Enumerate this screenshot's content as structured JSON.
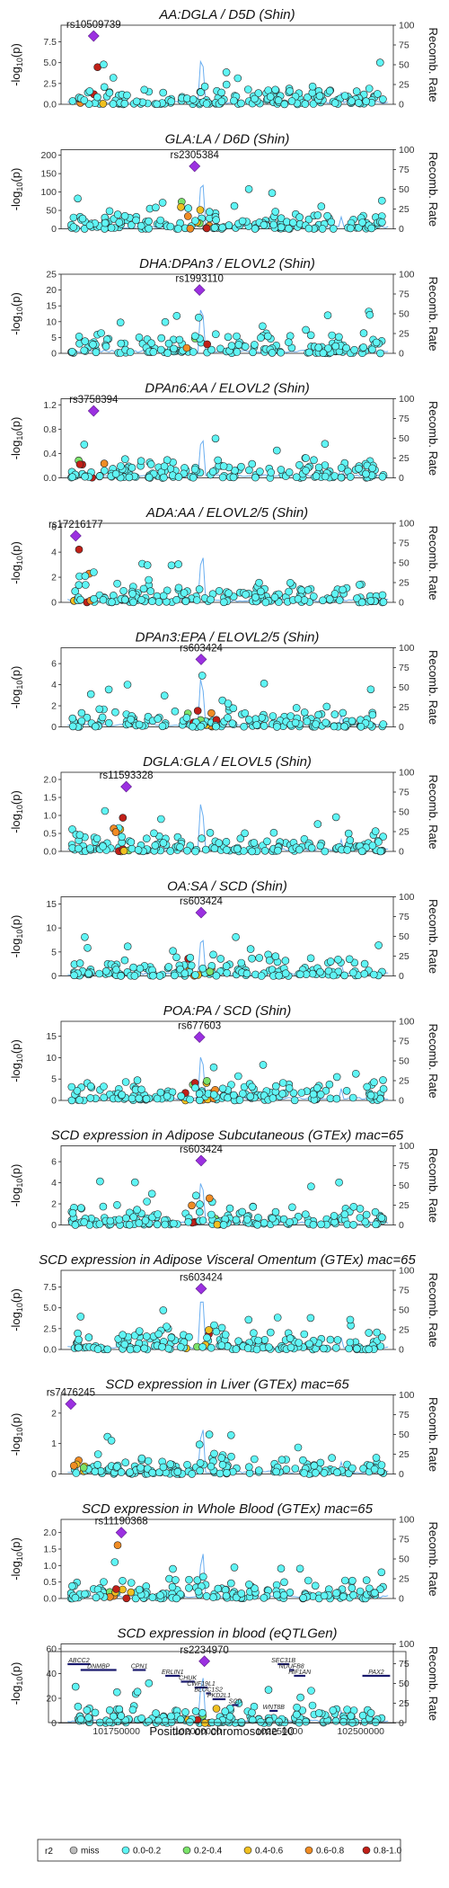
{
  "chart_data": {
    "type": "scatter",
    "xlabel": "Position on chromosome 10",
    "x_ticks": [
      "101750000",
      "102000000",
      "102250000",
      "102500000"
    ],
    "xlim": [
      101580000,
      102600000
    ],
    "right_axis_label": "Recomb. Rate",
    "right_ticks": [
      "0",
      "25",
      "50",
      "75",
      "100"
    ],
    "ylabel": "-log10(p)",
    "legend": {
      "title": "r2",
      "entries": [
        {
          "label": "miss",
          "color": "#bdbdbd"
        },
        {
          "label": "0.0-0.2",
          "color": "#5ff5f5"
        },
        {
          "label": "0.2-0.4",
          "color": "#7be36a"
        },
        {
          "label": "0.4-0.6",
          "color": "#f0c020"
        },
        {
          "label": "0.6-0.8",
          "color": "#f08c24"
        },
        {
          "label": "0.8-1.0",
          "color": "#c02018"
        }
      ]
    },
    "panels": [
      {
        "title": "AA:DGLA / D5D (Shin)",
        "lead_snp": "rs10509739",
        "lead_pos": 101680000,
        "lead_y": 8.2,
        "ylim": [
          0,
          9.5
        ],
        "y_ticks": [
          "0.0",
          "2.5",
          "5.0",
          "7.5"
        ],
        "y_tick_values": [
          0,
          2.5,
          5,
          7.5
        ]
      },
      {
        "title": "GLA:LA / D6D (Shin)",
        "lead_snp": "rs2305384",
        "lead_pos": 101990000,
        "lead_y": 170,
        "ylim": [
          0,
          215
        ],
        "y_ticks": [
          "0",
          "50",
          "100",
          "150",
          "200"
        ],
        "y_tick_values": [
          0,
          50,
          100,
          150,
          200
        ]
      },
      {
        "title": "DHA:DPAn3 / ELOVL2 (Shin)",
        "lead_snp": "rs1993110",
        "lead_pos": 102005000,
        "lead_y": 20,
        "ylim": [
          0,
          25
        ],
        "y_ticks": [
          "0",
          "5",
          "10",
          "15",
          "20",
          "25"
        ],
        "y_tick_values": [
          0,
          5,
          10,
          15,
          20,
          25
        ]
      },
      {
        "title": "DPAn6:AA / ELOVL2 (Shin)",
        "lead_snp": "rs3758394",
        "lead_pos": 101680000,
        "lead_y": 1.1,
        "ylim": [
          0,
          1.3
        ],
        "y_ticks": [
          "0.0",
          "0.4",
          "0.8",
          "1.2"
        ],
        "y_tick_values": [
          0,
          0.4,
          0.8,
          1.2
        ]
      },
      {
        "title": "ADA:AA / ELOVL2/5 (Shin)",
        "lead_snp": "rs17216177",
        "lead_pos": 101625000,
        "lead_y": 5.3,
        "ylim": [
          0,
          6.3
        ],
        "y_ticks": [
          "0",
          "2",
          "4",
          "6"
        ],
        "y_tick_values": [
          0,
          2,
          4,
          6
        ]
      },
      {
        "title": "DPAn3:EPA / ELOVL2/5 (Shin)",
        "lead_snp": "rs603424",
        "lead_pos": 102010000,
        "lead_y": 6.4,
        "ylim": [
          0,
          7.5
        ],
        "y_ticks": [
          "0",
          "2",
          "4",
          "6"
        ],
        "y_tick_values": [
          0,
          2,
          4,
          6
        ]
      },
      {
        "title": "DGLA:GLA / ELOVL5 (Shin)",
        "lead_snp": "rs11593328",
        "lead_pos": 101780000,
        "lead_y": 1.8,
        "ylim": [
          0,
          2.2
        ],
        "y_ticks": [
          "0.0",
          "0.5",
          "1.0",
          "1.5",
          "2.0"
        ],
        "y_tick_values": [
          0,
          0.5,
          1,
          1.5,
          2
        ]
      },
      {
        "title": "OA:SA / SCD (Shin)",
        "lead_snp": "rs603424",
        "lead_pos": 102010000,
        "lead_y": 13.2,
        "ylim": [
          0,
          16.5
        ],
        "y_ticks": [
          "0",
          "5",
          "10",
          "15"
        ],
        "y_tick_values": [
          0,
          5,
          10,
          15
        ]
      },
      {
        "title": "POA:PA / SCD (Shin)",
        "lead_snp": "rs677603",
        "lead_pos": 102005000,
        "lead_y": 14.8,
        "ylim": [
          0,
          18.5
        ],
        "y_ticks": [
          "0",
          "5",
          "10",
          "15"
        ],
        "y_tick_values": [
          0,
          5,
          10,
          15
        ]
      },
      {
        "title": "SCD expression in Adipose Subcutaneous (GTEx) mac=65",
        "lead_snp": "rs603424",
        "lead_pos": 102010000,
        "lead_y": 6.1,
        "ylim": [
          0,
          7.5
        ],
        "y_ticks": [
          "0",
          "2",
          "4",
          "6"
        ],
        "y_tick_values": [
          0,
          2,
          4,
          6
        ]
      },
      {
        "title": "SCD expression in Adipose Visceral Omentum (GTEx) mac=65",
        "lead_snp": "rs603424",
        "lead_pos": 102010000,
        "lead_y": 7.3,
        "ylim": [
          0,
          9.5
        ],
        "y_ticks": [
          "0.0",
          "2.5",
          "5.0",
          "7.5"
        ],
        "y_tick_values": [
          0,
          2.5,
          5,
          7.5
        ]
      },
      {
        "title": "SCD expression in Liver (GTEx) mac=65",
        "lead_snp": "rs7476245",
        "lead_pos": 101610000,
        "lead_y": 2.3,
        "ylim": [
          0,
          2.6
        ],
        "y_ticks": [
          "0",
          "1",
          "2"
        ],
        "y_tick_values": [
          0,
          1,
          2
        ]
      },
      {
        "title": "SCD expression in Whole Blood (GTEx) mac=65",
        "lead_snp": "rs11190368",
        "lead_pos": 101765000,
        "lead_y": 2.0,
        "ylim": [
          0,
          2.4
        ],
        "y_ticks": [
          "0.0",
          "0.5",
          "1.0",
          "1.5",
          "2.0"
        ],
        "y_tick_values": [
          0,
          0.5,
          1,
          1.5,
          2
        ]
      },
      {
        "title": "SCD expression in blood (eQTLGen)",
        "lead_snp": "rs2234970",
        "lead_pos": 102020000,
        "lead_y": 50,
        "ylim": [
          0,
          64
        ],
        "y_ticks": [
          "0",
          "20",
          "40",
          "60"
        ],
        "y_tick_values": [
          0,
          20,
          40,
          60
        ]
      }
    ],
    "genes": [
      {
        "name": "ABCC2",
        "start": 101600000,
        "end": 101670000,
        "row": 0
      },
      {
        "name": "DNMBP",
        "start": 101640000,
        "end": 101750000,
        "row": 1
      },
      {
        "name": "CPN1",
        "start": 101800000,
        "end": 101840000,
        "row": 1
      },
      {
        "name": "ERLIN1",
        "start": 101900000,
        "end": 101945000,
        "row": 2
      },
      {
        "name": "CHUK",
        "start": 101948000,
        "end": 101990000,
        "row": 3
      },
      {
        "name": "CWF19L1",
        "start": 101990000,
        "end": 102030000,
        "row": 4
      },
      {
        "name": "BLOC1S2",
        "start": 102025000,
        "end": 102040000,
        "row": 5
      },
      {
        "name": "PKD2L1",
        "start": 102045000,
        "end": 102085000,
        "row": 6
      },
      {
        "name": "SCD",
        "start": 102105000,
        "end": 102125000,
        "row": 7
      },
      {
        "name": "WNT8B",
        "start": 102220000,
        "end": 102245000,
        "row": 8
      },
      {
        "name": "SEC31B",
        "start": 102245000,
        "end": 102280000,
        "row": 0
      },
      {
        "name": "NDUFB8",
        "start": 102280000,
        "end": 102295000,
        "row": 1
      },
      {
        "name": "HIF1AN",
        "start": 102295000,
        "end": 102330000,
        "row": 2
      },
      {
        "name": "PAX2",
        "start": 102505000,
        "end": 102590000,
        "row": 2
      }
    ]
  }
}
